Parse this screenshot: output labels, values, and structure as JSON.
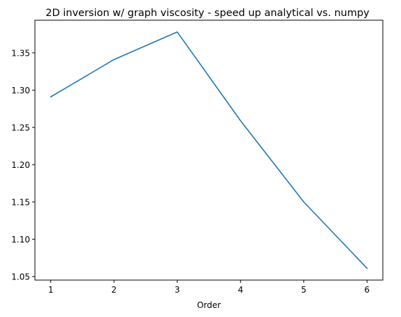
{
  "chart_data": {
    "type": "line",
    "title": "2D inversion w/ graph viscosity - speed up analytical vs. numpy",
    "xlabel": "Order",
    "ylabel": "",
    "x": [
      1,
      2,
      3,
      4,
      5,
      6
    ],
    "series": [
      {
        "values": [
          1.291,
          1.341,
          1.378,
          1.259,
          1.15,
          1.061
        ],
        "color": "#1f77b4"
      }
    ],
    "xticks": [
      1,
      2,
      3,
      4,
      5,
      6
    ],
    "xtick_labels": [
      "1",
      "2",
      "3",
      "4",
      "5",
      "6"
    ],
    "yticks": [
      1.05,
      1.1,
      1.15,
      1.2,
      1.25,
      1.3,
      1.35
    ],
    "ytick_labels": [
      "1.05",
      "1.10",
      "1.15",
      "1.20",
      "1.25",
      "1.30",
      "1.35"
    ],
    "xlim": [
      0.75,
      6.25
    ],
    "ylim": [
      1.0452,
      1.3938
    ],
    "grid": false,
    "legend": "none"
  }
}
